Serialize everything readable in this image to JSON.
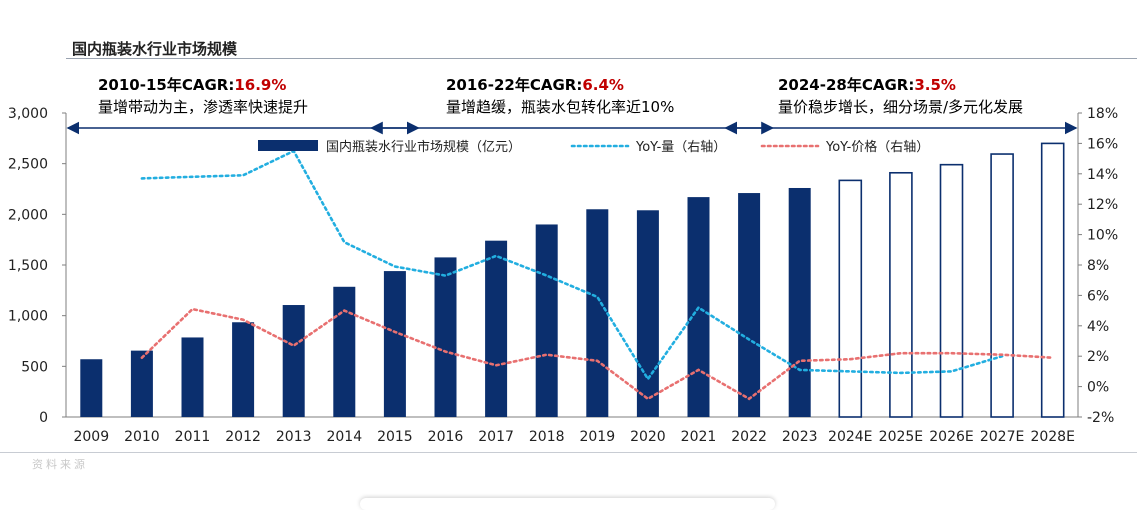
{
  "title": "国内瓶装水行业市场规模",
  "periods": [
    {
      "label": "2010-15年CAGR",
      "value": "16.9%",
      "desc": "量增带动为主，渗透率快速提升"
    },
    {
      "label": "2016-22年CAGR",
      "value": "6.4%",
      "desc": "量增趋缓，瓶装水包转化率近10%"
    },
    {
      "label": "2024-28年CAGR",
      "value": "3.5%",
      "desc": "量价稳步增长，细分场景/多元化发展"
    }
  ],
  "footer_faint": "资料来源",
  "colors": {
    "bar": "#0b2f6e",
    "yoy_volume": "#22aee0",
    "yoy_price": "#e87070",
    "cagr_value": "#c00000"
  },
  "chart_data": {
    "type": "bar",
    "categories": [
      "2009",
      "2010",
      "2011",
      "2012",
      "2013",
      "2014",
      "2015",
      "2016",
      "2017",
      "2018",
      "2019",
      "2020",
      "2021",
      "2022",
      "2023",
      "2024E",
      "2025E",
      "2026E",
      "2027E",
      "2028E"
    ],
    "series": [
      {
        "name": "国内瓶装水行业市场规模（亿元）",
        "type": "bar",
        "axis": "left",
        "values": [
          570,
          655,
          785,
          935,
          1105,
          1285,
          1440,
          1575,
          1740,
          1900,
          2050,
          2040,
          2170,
          2210,
          2260,
          2335,
          2410,
          2490,
          2595,
          2700
        ],
        "estimated_from_index": 15
      },
      {
        "name": "YoY-量（右轴）",
        "type": "line",
        "style": "dotted",
        "axis": "right",
        "values": [
          null,
          13.7,
          13.8,
          13.9,
          15.5,
          9.5,
          7.9,
          7.3,
          8.6,
          7.3,
          5.9,
          0.5,
          5.2,
          3.1,
          1.1,
          1.0,
          0.9,
          1.0,
          2.0,
          null
        ]
      },
      {
        "name": "YoY-价格（右轴）",
        "type": "line",
        "style": "dotted",
        "axis": "right",
        "values": [
          null,
          1.9,
          5.1,
          4.4,
          2.7,
          5.0,
          3.6,
          2.3,
          1.4,
          2.1,
          1.7,
          -0.8,
          1.1,
          -0.8,
          1.7,
          1.8,
          2.2,
          2.2,
          2.1,
          1.9
        ]
      }
    ],
    "left_axis": {
      "min": 0,
      "max": 3000,
      "ticks": [
        "0",
        "500",
        "1,000",
        "1,500",
        "2,000",
        "2,500",
        "3,000"
      ]
    },
    "right_axis": {
      "min": -2,
      "max": 18,
      "ticks": [
        "-2%",
        "0%",
        "2%",
        "4%",
        "6%",
        "8%",
        "10%",
        "12%",
        "14%",
        "16%",
        "18%"
      ]
    },
    "legend_position": "top",
    "grid": false
  }
}
